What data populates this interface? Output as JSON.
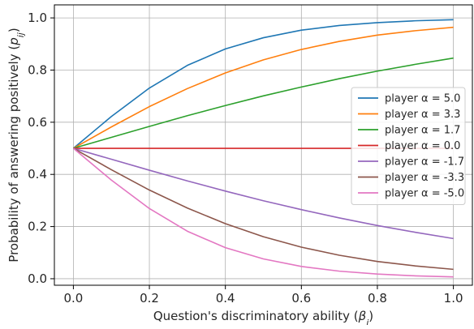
{
  "chart_data": {
    "type": "line",
    "xlabel": "Question's discriminatory ability (βj)",
    "ylabel": "Probability of answering positively (pij)",
    "xlim": [
      -0.05,
      1.05
    ],
    "ylim": [
      -0.025,
      1.05
    ],
    "x_ticks": [
      "0.0",
      "0.2",
      "0.4",
      "0.6",
      "0.8",
      "1.0"
    ],
    "y_ticks": [
      "0.0",
      "0.2",
      "0.4",
      "0.6",
      "0.8",
      "1.0"
    ],
    "grid": true,
    "legend_position": "center-right",
    "x": [
      0.0,
      0.1,
      0.2,
      0.3,
      0.4,
      0.5,
      0.6,
      0.7,
      0.8,
      0.9,
      1.0
    ],
    "series": [
      {
        "name": "player α = 5.0",
        "color": "#1f77b4",
        "values": [
          0.5,
          0.622,
          0.731,
          0.818,
          0.881,
          0.924,
          0.953,
          0.971,
          0.982,
          0.989,
          0.993
        ]
      },
      {
        "name": "player α = 3.3",
        "color": "#ff7f0e",
        "values": [
          0.5,
          0.582,
          0.66,
          0.729,
          0.789,
          0.839,
          0.879,
          0.91,
          0.934,
          0.951,
          0.964
        ]
      },
      {
        "name": "player α = 1.7",
        "color": "#2ca02c",
        "values": [
          0.5,
          0.542,
          0.584,
          0.625,
          0.664,
          0.701,
          0.735,
          0.767,
          0.796,
          0.822,
          0.846
        ]
      },
      {
        "name": "player α = 0.0",
        "color": "#d62728",
        "values": [
          0.5,
          0.5,
          0.5,
          0.5,
          0.5,
          0.5,
          0.5,
          0.5,
          0.5,
          0.5,
          0.5
        ]
      },
      {
        "name": "player α = -1.7",
        "color": "#9467bd",
        "values": [
          0.5,
          0.458,
          0.416,
          0.375,
          0.336,
          0.299,
          0.265,
          0.233,
          0.204,
          0.178,
          0.154
        ]
      },
      {
        "name": "player α = -3.3",
        "color": "#8c564b",
        "values": [
          0.5,
          0.418,
          0.34,
          0.271,
          0.211,
          0.161,
          0.121,
          0.09,
          0.066,
          0.049,
          0.036
        ]
      },
      {
        "name": "player α = -5.0",
        "color": "#e377c2",
        "values": [
          0.5,
          0.378,
          0.269,
          0.182,
          0.119,
          0.076,
          0.047,
          0.029,
          0.018,
          0.011,
          0.007
        ]
      }
    ]
  }
}
